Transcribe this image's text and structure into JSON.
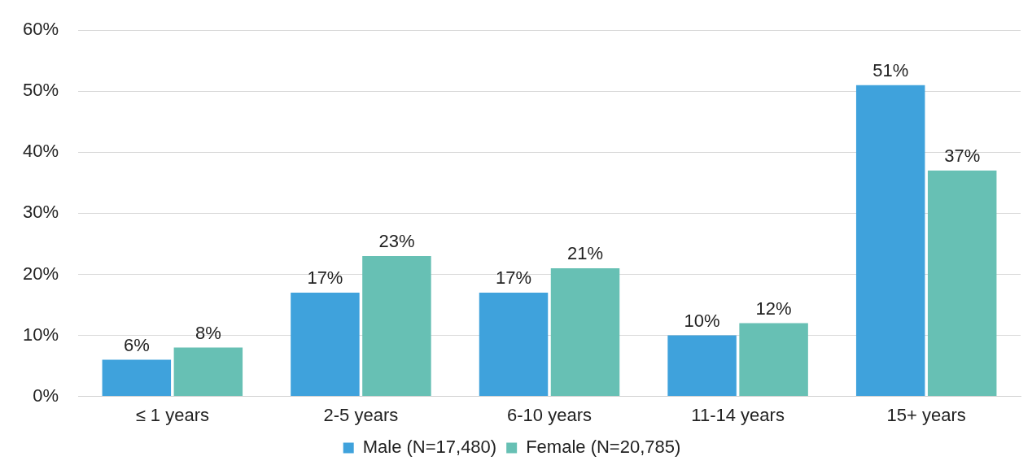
{
  "chart_data": {
    "type": "bar",
    "categories": [
      "≤ 1 years",
      "2-5 years",
      "6-10 years",
      "11-14 years",
      "15+ years"
    ],
    "series": [
      {
        "name": "Male (N=17,480)",
        "color": "#3fa2dc",
        "values": [
          6,
          17,
          17,
          10,
          51
        ],
        "value_labels": [
          "6%",
          "17%",
          "17%",
          "10%",
          "51%"
        ]
      },
      {
        "name": "Female (N=20,785)",
        "color": "#67c0b4",
        "values": [
          8,
          23,
          21,
          12,
          37
        ],
        "value_labels": [
          "8%",
          "23%",
          "21%",
          "12%",
          "37%"
        ]
      }
    ],
    "ylim": [
      0,
      60
    ],
    "yticks": [
      {
        "value": 0,
        "label": "0%"
      },
      {
        "value": 10,
        "label": "10%"
      },
      {
        "value": 20,
        "label": "20%"
      },
      {
        "value": 30,
        "label": "30%"
      },
      {
        "value": 40,
        "label": "40%"
      },
      {
        "value": 50,
        "label": "50%"
      },
      {
        "value": 60,
        "label": "60%"
      }
    ],
    "grid": "y",
    "legend": "bottom"
  }
}
